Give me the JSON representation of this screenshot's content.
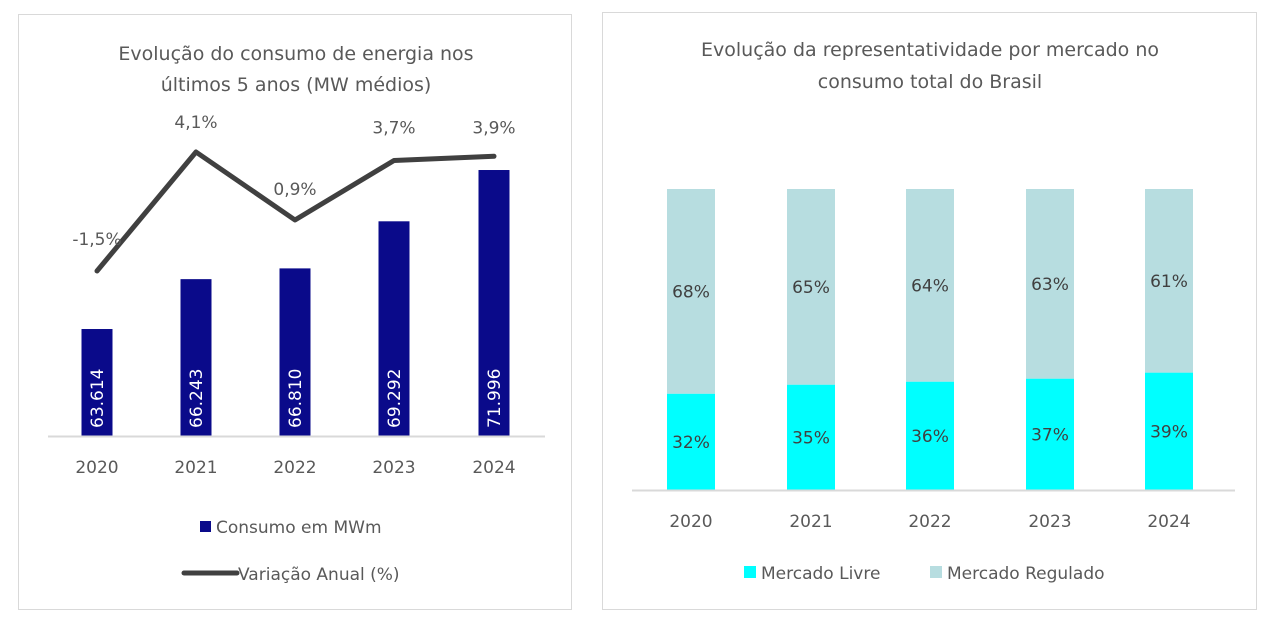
{
  "chart_data": [
    {
      "type": "bar+line",
      "title": [
        "Evolução do consumo de energia nos",
        "últimos 5 anos (MW médios)"
      ],
      "categories": [
        "2020",
        "2021",
        "2022",
        "2023",
        "2024"
      ],
      "series": [
        {
          "name": "Consumo em MWm",
          "type": "bar",
          "values": [
            63614,
            66243,
            66810,
            69292,
            71996
          ],
          "labels": [
            "63.614",
            "66.243",
            "66.810",
            "69.292",
            "71.996"
          ],
          "color": "#0a0a8a"
        },
        {
          "name": "Variação Anual (%)",
          "type": "line",
          "values": [
            -1.5,
            4.1,
            0.9,
            3.7,
            3.9
          ],
          "labels": [
            "-1,5%",
            "4,1%",
            "0,9%",
            "3,7%",
            "3,9%"
          ],
          "color": "#404040"
        }
      ],
      "ylim": [
        57974,
        73000
      ],
      "legend": "bottom",
      "grid": false
    },
    {
      "type": "stacked-bar",
      "title": [
        "Evolução da representatividade por mercado no",
        "consumo total do Brasil"
      ],
      "categories": [
        "2020",
        "2021",
        "2022",
        "2023",
        "2024"
      ],
      "series": [
        {
          "name": "Mercado Livre",
          "values": [
            32,
            35,
            36,
            37,
            39
          ],
          "labels": [
            "32%",
            "35%",
            "36%",
            "37%",
            "39%"
          ],
          "color": "#00ffff"
        },
        {
          "name": "Mercado Regulado",
          "values": [
            68,
            65,
            64,
            63,
            61
          ],
          "labels": [
            "68%",
            "65%",
            "64%",
            "63%",
            "61%"
          ],
          "color": "#b7dde0"
        }
      ],
      "ylim": [
        0,
        100
      ],
      "legend": "bottom",
      "grid": false
    }
  ]
}
